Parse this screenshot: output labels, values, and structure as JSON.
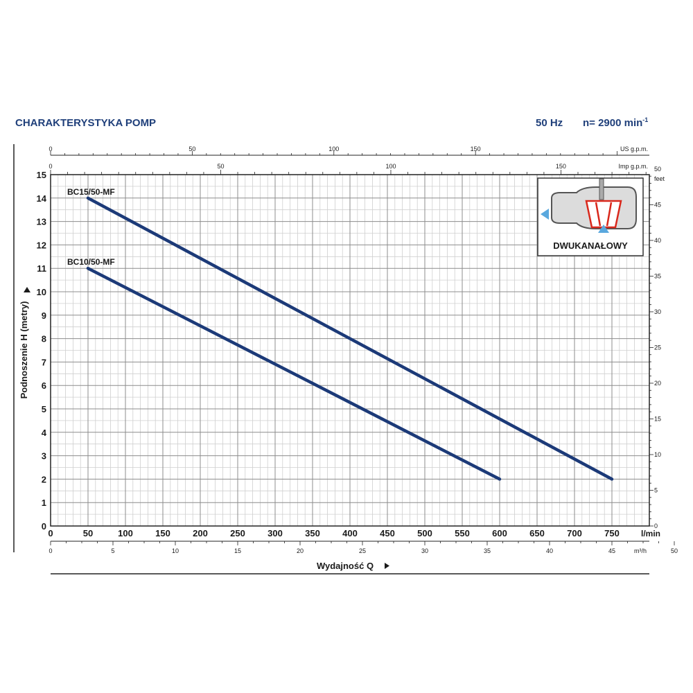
{
  "header": {
    "title": "CHARAKTERYSTYKA POMP",
    "freq": "50 Hz",
    "speed": "n= 2900 min",
    "speed_sup": "-1"
  },
  "inset": {
    "label": "DWUKANAŁOWY",
    "icon": "two-channel-impeller-icon"
  },
  "colors": {
    "curve": "#1c3a78",
    "header": "#1f3f7a",
    "grid_minor": "#cfcfcf",
    "grid_major": "#8c8c8c"
  },
  "chart_data": {
    "type": "line",
    "xlabel": "Wydajność Q",
    "ylabel": "Podnoszenie H (metry)",
    "xlim": [
      0,
      800
    ],
    "ylim": [
      0,
      15
    ],
    "grid": true,
    "x_unit": "l/min",
    "x_ticks": [
      0,
      50,
      100,
      150,
      200,
      250,
      300,
      350,
      400,
      450,
      500,
      550,
      600,
      650,
      700,
      750
    ],
    "y_ticks": [
      0,
      1,
      2,
      3,
      4,
      5,
      6,
      7,
      8,
      9,
      10,
      11,
      12,
      13,
      14,
      15
    ],
    "secondary_axes": {
      "m3h": {
        "unit": "m³/h",
        "ticks": [
          0,
          5,
          10,
          15,
          20,
          25,
          30,
          35,
          40,
          45,
          50
        ]
      },
      "us_gpm": {
        "unit": "US g.p.m.",
        "ticks": [
          0,
          50,
          100,
          150
        ]
      },
      "imp_gpm": {
        "unit": "Imp g.p.m.",
        "ticks": [
          0,
          50,
          100,
          150
        ]
      },
      "feet": {
        "unit": "feet",
        "ticks": [
          0,
          5,
          10,
          15,
          20,
          25,
          30,
          35,
          40,
          45,
          50
        ]
      }
    },
    "series": [
      {
        "name": "BC15/50-MF",
        "x": [
          50,
          750
        ],
        "y": [
          14,
          2
        ]
      },
      {
        "name": "BC10/50-MF",
        "x": [
          50,
          600
        ],
        "y": [
          11,
          2
        ]
      }
    ]
  }
}
